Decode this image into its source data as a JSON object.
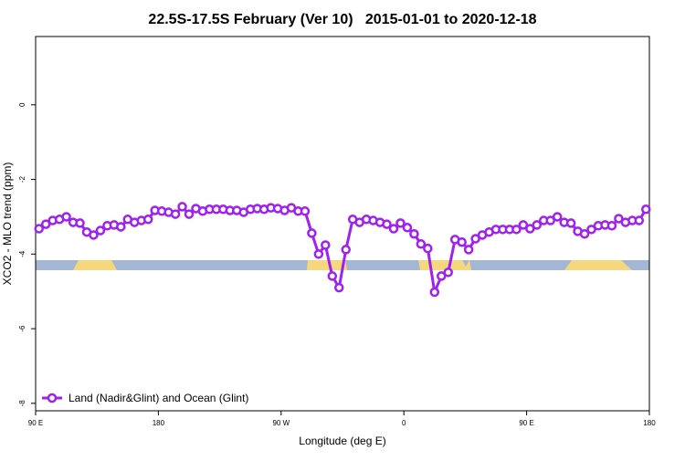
{
  "chart_data": {
    "type": "line",
    "title": "22.5S-17.5S February (Ver 10)   2015-01-01 to 2020-12-18",
    "xlabel": "Longitude (deg E)",
    "ylabel": "XCO2 - MLO trend (ppm)",
    "xlim": [
      90,
      540
    ],
    "ylim": [
      -8.2,
      1.83
    ],
    "xticks": [
      {
        "value": 90,
        "label": "90 E"
      },
      180,
      {
        "value": 270,
        "label": "90 W"
      },
      {
        "value": 360,
        "label": "0"
      },
      {
        "value": 450,
        "label": "90 E"
      },
      {
        "value": 540,
        "label": "180"
      }
    ],
    "yticks": [
      -8,
      -6,
      -4,
      -2,
      0
    ],
    "legend": "bottom-left",
    "x": [
      92.5,
      97.5,
      102.5,
      107.5,
      112.5,
      117.5,
      122.5,
      127.5,
      132.5,
      137.5,
      142.5,
      147.5,
      152.5,
      157.5,
      162.5,
      167.5,
      172.5,
      177.5,
      182.5,
      187.5,
      192.5,
      197.5,
      202.5,
      207.5,
      212.5,
      217.5,
      222.5,
      227.5,
      232.5,
      237.5,
      242.5,
      247.5,
      252.5,
      257.5,
      262.5,
      267.5,
      272.5,
      277.5,
      282.5,
      287.5,
      292.5,
      297.5,
      302.5,
      307.5,
      312.5,
      317.5,
      322.5,
      327.5,
      332.5,
      337.5,
      342.5,
      347.5,
      352.5,
      357.5,
      362.5,
      367.5,
      372.5,
      377.5,
      382.5,
      387.5,
      392.5,
      397.5,
      402.5,
      407.5,
      412.5,
      417.5,
      422.5,
      427.5,
      432.5,
      437.5,
      442.5,
      447.5,
      452.5,
      457.5,
      462.5,
      467.5,
      472.5,
      477.5,
      482.5,
      487.5,
      492.5,
      497.5,
      502.5,
      507.5,
      512.5,
      517.5,
      522.5,
      527.5,
      532.5,
      537.5
    ],
    "series": [
      {
        "name": "Land (Nadir&Glint) and Ocean (Glint)",
        "color": "#a020f0",
        "values": [
          -3.32,
          -3.2,
          -3.1,
          -3.07,
          -3.0,
          -3.15,
          -3.17,
          -3.41,
          -3.49,
          -3.37,
          -3.24,
          -3.22,
          -3.27,
          -3.07,
          -3.15,
          -3.1,
          -3.07,
          -2.83,
          -2.85,
          -2.88,
          -2.93,
          -2.73,
          -2.93,
          -2.78,
          -2.85,
          -2.8,
          -2.8,
          -2.8,
          -2.83,
          -2.83,
          -2.88,
          -2.8,
          -2.78,
          -2.8,
          -2.76,
          -2.78,
          -2.83,
          -2.76,
          -2.85,
          -2.85,
          -3.44,
          -4.0,
          -3.76,
          -4.59,
          -4.9,
          -3.88,
          -3.07,
          -3.15,
          -3.07,
          -3.1,
          -3.15,
          -3.2,
          -3.32,
          -3.17,
          -3.29,
          -3.46,
          -3.73,
          -3.85,
          -5.02,
          -4.59,
          -4.49,
          -3.61,
          -3.68,
          -3.88,
          -3.59,
          -3.49,
          -3.41,
          -3.34,
          -3.34,
          -3.34,
          -3.34,
          -3.22,
          -3.32,
          -3.22,
          -3.1,
          -3.1,
          -3.0,
          -3.15,
          -3.17,
          -3.39,
          -3.46,
          -3.34,
          -3.24,
          -3.22,
          -3.24,
          -3.05,
          -3.15,
          -3.1,
          -3.1,
          -2.8
        ]
      }
    ]
  }
}
